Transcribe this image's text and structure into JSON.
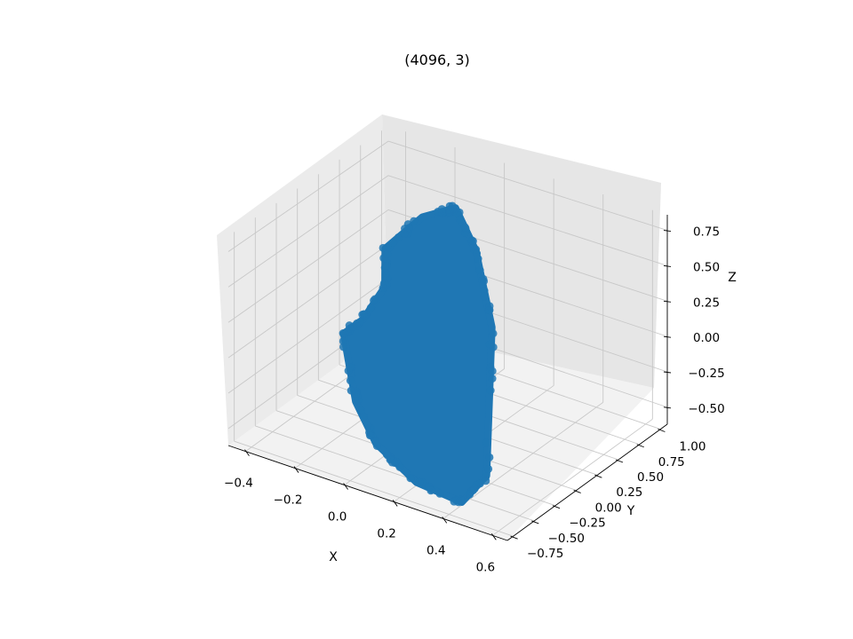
{
  "chart_data": {
    "type": "scatter",
    "projection": "3d",
    "title": "(4096, 3)",
    "xlabel": "X",
    "ylabel": "Y",
    "zlabel": "Z",
    "x_ticks": [
      "−0.4",
      "−0.2",
      "0.0",
      "0.2",
      "0.4",
      "0.6"
    ],
    "y_ticks": [
      "−0.75",
      "−0.50",
      "−0.25",
      "0.00",
      "0.25",
      "0.50",
      "0.75",
      "1.00"
    ],
    "z_ticks": [
      "−0.50",
      "−0.25",
      "0.00",
      "0.25",
      "0.50",
      "0.75"
    ],
    "x_tick_values": [
      -0.4,
      -0.2,
      0.0,
      0.2,
      0.4,
      0.6
    ],
    "y_tick_values": [
      -0.75,
      -0.5,
      -0.25,
      0.0,
      0.25,
      0.5,
      0.75,
      1.0
    ],
    "z_tick_values": [
      -0.5,
      -0.25,
      0.0,
      0.25,
      0.5,
      0.75
    ],
    "xlim": [
      -0.47,
      0.66
    ],
    "ylim": [
      -0.82,
      1.08
    ],
    "zlim": [
      -0.62,
      0.86
    ],
    "n_points": 4096,
    "point_color": "#1f77b4",
    "grid": true,
    "pane_color": "#f2f2f2",
    "view": {
      "elev": 30,
      "azim": -60
    },
    "point_cloud_outline": [
      [
        -0.2,
        -0.1,
        -0.46
      ],
      [
        -0.05,
        -0.3,
        -0.58
      ],
      [
        0.2,
        -0.55,
        -0.6
      ],
      [
        0.4,
        -0.6,
        -0.6
      ],
      [
        0.45,
        -0.45,
        -0.45
      ],
      [
        0.25,
        0.2,
        0.2
      ],
      [
        0.1,
        0.45,
        0.55
      ],
      [
        0.0,
        0.5,
        0.78
      ],
      [
        -0.1,
        0.4,
        0.7
      ],
      [
        -0.2,
        0.25,
        0.48
      ],
      [
        -0.15,
        0.1,
        0.3
      ],
      [
        -0.22,
        0.05,
        0.05
      ],
      [
        -0.3,
        0.05,
        -0.1
      ]
    ]
  }
}
